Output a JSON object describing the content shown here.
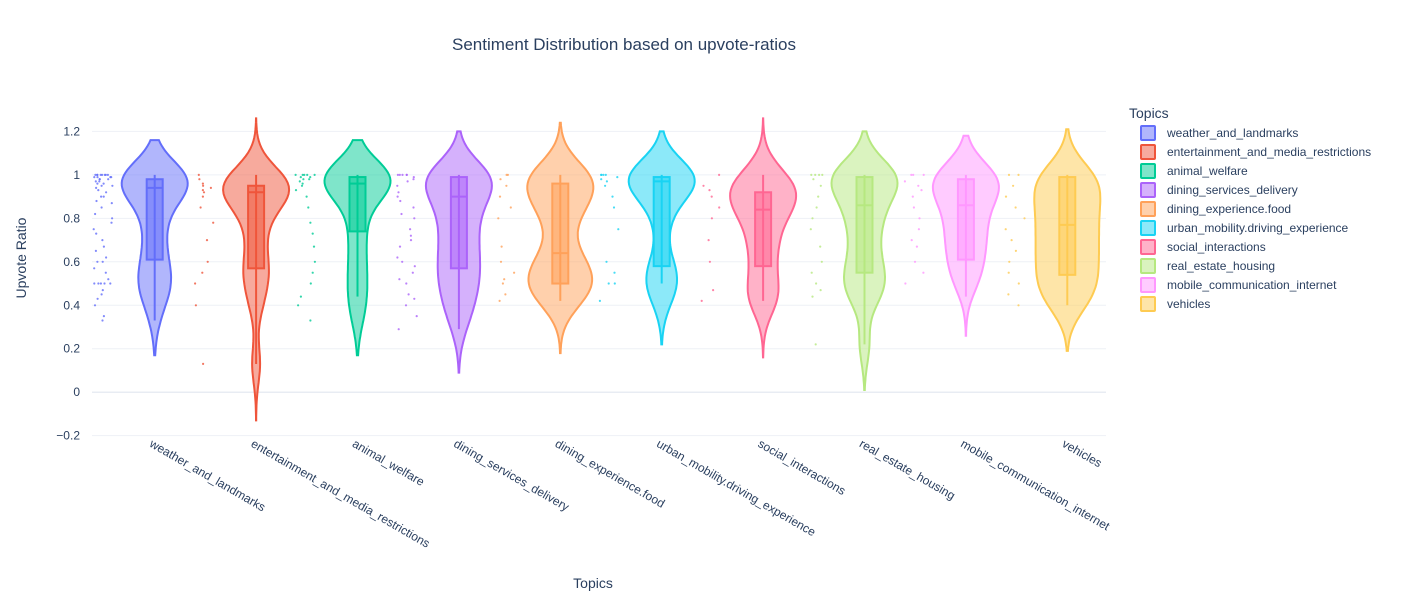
{
  "chart_data": {
    "type": "violin",
    "title": "Sentiment Distribution based on upvote-ratios",
    "xlabel": "Topics",
    "ylabel": "Upvote Ratio",
    "ylim": [
      -0.22,
      1.34
    ],
    "yticks": [
      -0.2,
      0,
      0.2,
      0.4,
      0.6,
      0.8,
      1,
      1.2
    ],
    "ytick_labels": [
      "−0.2",
      "0",
      "0.2",
      "0.4",
      "0.6",
      "0.8",
      "1",
      "1.2"
    ],
    "grid": true,
    "legend_title": "Topics",
    "legend_position": "right",
    "categories": [
      "weather_and_landmarks",
      "entertainment_and_media_restrictions",
      "animal_welfare",
      "dining_services_delivery",
      "dining_experience.food",
      "urban_mobility.driving_experience",
      "social_interactions",
      "real_estate_housing",
      "mobile_communication_internet",
      "vehicles"
    ],
    "series": [
      {
        "name": "weather_and_landmarks",
        "color": "#636efa",
        "violin_min": 0.17,
        "violin_max": 1.16,
        "box": {
          "q1": 0.61,
          "median": 0.94,
          "q3": 0.98,
          "lower": 0.33,
          "upper": 1.0
        },
        "points": [
          0.33,
          0.35,
          0.4,
          0.43,
          0.45,
          0.47,
          0.5,
          0.5,
          0.5,
          0.5,
          0.5,
          0.52,
          0.55,
          0.57,
          0.6,
          0.6,
          0.62,
          0.65,
          0.67,
          0.7,
          0.73,
          0.75,
          0.78,
          0.8,
          0.82,
          0.85,
          0.87,
          0.88,
          0.9,
          0.9,
          0.92,
          0.93,
          0.94,
          0.95,
          0.95,
          0.96,
          0.96,
          0.97,
          0.97,
          0.98,
          0.98,
          0.98,
          0.99,
          0.99,
          0.99,
          0.99,
          1,
          1,
          1,
          1,
          1,
          1,
          1,
          1
        ]
      },
      {
        "name": "entertainment_and_media_restrictions",
        "color": "#ef553b",
        "violin_min": -0.13,
        "violin_max": 1.26,
        "box": {
          "q1": 0.57,
          "median": 0.92,
          "q3": 0.95,
          "lower": 0.13,
          "upper": 1.0
        },
        "points": [
          0.13,
          0.4,
          0.5,
          0.55,
          0.6,
          0.7,
          0.78,
          0.85,
          0.9,
          0.92,
          0.93,
          0.94,
          0.95,
          0.96,
          0.98,
          1
        ]
      },
      {
        "name": "animal_welfare",
        "color": "#00cc96",
        "violin_min": 0.17,
        "violin_max": 1.16,
        "box": {
          "q1": 0.74,
          "median": 0.96,
          "q3": 0.99,
          "lower": 0.44,
          "upper": 1.0
        },
        "points": [
          0.33,
          0.4,
          0.44,
          0.5,
          0.55,
          0.6,
          0.67,
          0.73,
          0.78,
          0.85,
          0.9,
          0.93,
          0.95,
          0.96,
          0.97,
          0.98,
          0.98,
          0.99,
          0.99,
          1,
          1,
          1,
          1,
          1
        ]
      },
      {
        "name": "dining_services_delivery",
        "color": "#ab63fa",
        "violin_min": 0.09,
        "violin_max": 1.2,
        "box": {
          "q1": 0.57,
          "median": 0.9,
          "q3": 0.99,
          "lower": 0.29,
          "upper": 1.0
        },
        "points": [
          0.29,
          0.35,
          0.4,
          0.43,
          0.45,
          0.5,
          0.52,
          0.55,
          0.58,
          0.6,
          0.62,
          0.67,
          0.7,
          0.72,
          0.75,
          0.8,
          0.82,
          0.85,
          0.88,
          0.9,
          0.92,
          0.95,
          0.97,
          0.98,
          0.99,
          1,
          1,
          1,
          1,
          1
        ]
      },
      {
        "name": "dining_experience.food",
        "color": "#ffa15a",
        "violin_min": 0.18,
        "violin_max": 1.24,
        "box": {
          "q1": 0.5,
          "median": 0.64,
          "q3": 0.96,
          "lower": 0.42,
          "upper": 1.0
        },
        "points": [
          0.42,
          0.45,
          0.5,
          0.52,
          0.55,
          0.6,
          0.67,
          0.8,
          0.85,
          0.9,
          0.95,
          0.98,
          1,
          1
        ]
      },
      {
        "name": "urban_mobility.driving_experience",
        "color": "#19d3f3",
        "violin_min": 0.22,
        "violin_max": 1.2,
        "box": {
          "q1": 0.58,
          "median": 0.97,
          "q3": 0.99,
          "lower": 0.5,
          "upper": 1.0
        },
        "points": [
          0.42,
          0.5,
          0.5,
          0.55,
          0.6,
          0.75,
          0.85,
          0.9,
          0.95,
          0.97,
          0.98,
          0.99,
          1,
          1,
          1,
          1
        ]
      },
      {
        "name": "social_interactions",
        "color": "#ff6692",
        "violin_min": 0.16,
        "violin_max": 1.26,
        "box": {
          "q1": 0.58,
          "median": 0.84,
          "q3": 0.92,
          "lower": 0.42,
          "upper": 1.0
        },
        "points": [
          0.42,
          0.47,
          0.6,
          0.7,
          0.8,
          0.85,
          0.9,
          0.93,
          0.95,
          1
        ]
      },
      {
        "name": "real_estate_housing",
        "color": "#b6e880",
        "violin_min": 0.01,
        "violin_max": 1.2,
        "box": {
          "q1": 0.55,
          "median": 0.86,
          "q3": 0.99,
          "lower": 0.22,
          "upper": 1.0
        },
        "points": [
          0.22,
          0.44,
          0.47,
          0.5,
          0.55,
          0.6,
          0.67,
          0.75,
          0.8,
          0.85,
          0.9,
          0.95,
          0.98,
          1,
          1,
          1,
          1
        ]
      },
      {
        "name": "mobile_communication_internet",
        "color": "#ff97ff",
        "violin_min": 0.26,
        "violin_max": 1.18,
        "box": {
          "q1": 0.61,
          "median": 0.86,
          "q3": 0.98,
          "lower": 0.44,
          "upper": 1.0
        },
        "points": [
          0.5,
          0.55,
          0.6,
          0.67,
          0.7,
          0.75,
          0.8,
          0.85,
          0.9,
          0.93,
          0.95,
          0.97,
          1,
          1,
          1
        ]
      },
      {
        "name": "vehicles",
        "color": "#fecb52",
        "violin_min": 0.19,
        "violin_max": 1.21,
        "box": {
          "q1": 0.54,
          "median": 0.77,
          "q3": 0.99,
          "lower": 0.4,
          "upper": 1.0
        },
        "points": [
          0.4,
          0.45,
          0.5,
          0.55,
          0.6,
          0.65,
          0.7,
          0.75,
          0.8,
          0.85,
          0.9,
          0.95,
          1,
          1
        ]
      }
    ]
  }
}
